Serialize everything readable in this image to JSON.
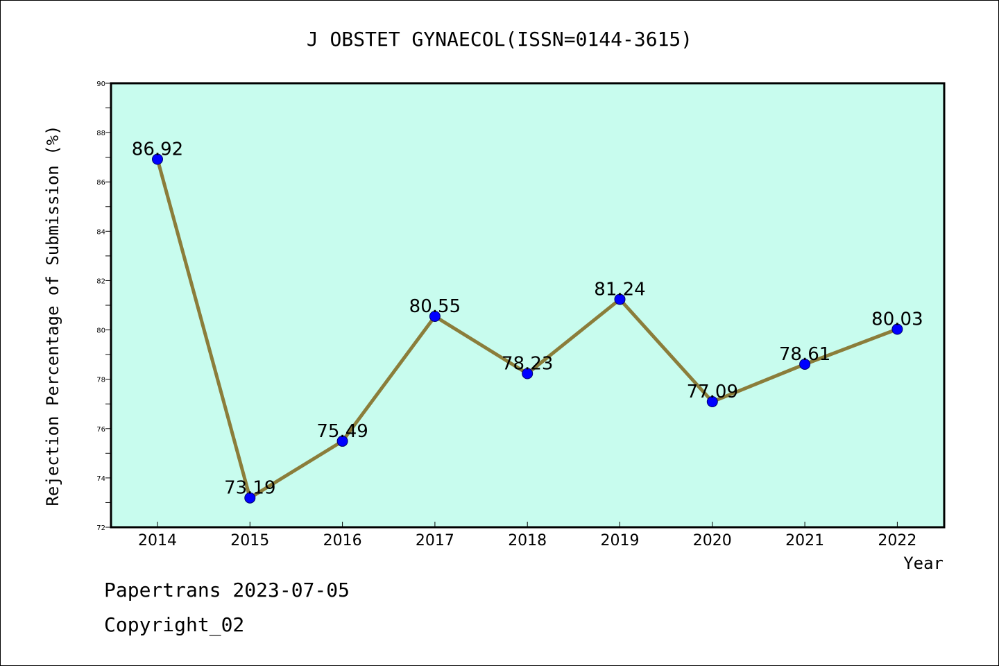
{
  "chart_data": {
    "type": "line",
    "title": "J OBSTET GYNAECOL(ISSN=0144-3615)",
    "xlabel": "Year",
    "ylabel": "Rejection Percentage of Submission (%)",
    "categories": [
      "2014",
      "2015",
      "2016",
      "2017",
      "2018",
      "2019",
      "2020",
      "2021",
      "2022"
    ],
    "values": [
      86.92,
      73.19,
      75.49,
      80.55,
      78.23,
      81.24,
      77.09,
      78.61,
      80.03
    ],
    "value_labels": [
      "86.92",
      "73.19",
      "75.49",
      "80.55",
      "78.23",
      "81.24",
      "77.09",
      "78.61",
      "80.03"
    ],
    "ylim": [
      72,
      90
    ],
    "yticks": [
      72,
      74,
      76,
      78,
      80,
      82,
      84,
      86,
      88,
      90
    ],
    "grid": false,
    "colors": {
      "plot_background": "#c8fcee",
      "line": "#8b7d3a",
      "marker": "#0000ff"
    }
  },
  "footer": {
    "line1": "Papertrans 2023-07-05",
    "line2": "Copyright_02"
  }
}
